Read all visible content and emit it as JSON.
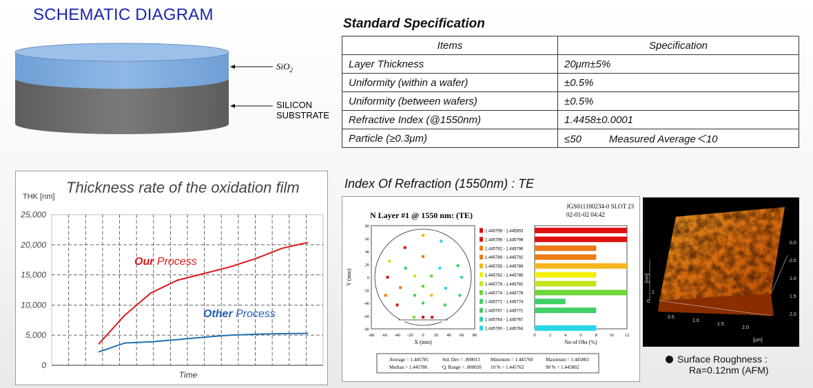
{
  "schematic": {
    "title": "SCHEMATIC DIAGRAM",
    "layer_label": "SiO",
    "layer_label_sub": "2",
    "substrate_label_1": "SILICON",
    "substrate_label_2": "SUBSTRATE",
    "colors": {
      "oxide": "#7aa7dc",
      "substrate": "#6e6e6e"
    }
  },
  "spec": {
    "title": "Standard Specification",
    "headers": [
      "Items",
      "Specification"
    ],
    "rows": [
      [
        "Layer Thickness",
        "20μm±5%"
      ],
      [
        "Uniformity (within a wafer)",
        "±0.5%"
      ],
      [
        "Uniformity (between wafers)",
        "±0.5%"
      ],
      [
        "Refractive Index (@1550nm)",
        "1.4458±0.0001"
      ],
      [
        "Particle (≥0.3μm)",
        "≤50"
      ]
    ],
    "particle_note": "Measured Average＜10"
  },
  "chart_data": {
    "type": "line",
    "title": "Thickness rate of the oxidation film",
    "xlabel": "Time",
    "ylabel": "THK [nm]",
    "ylim": [
      0,
      25000
    ],
    "yticks": [
      "25,000",
      "20,000",
      "15,000",
      "10,000",
      "5,000",
      "0"
    ],
    "grid": true,
    "x": [
      1,
      2,
      3,
      4,
      5,
      6,
      7,
      8,
      9
    ],
    "series": [
      {
        "name": "Our Process",
        "name_bold": "Our",
        "name_rest": " Process",
        "color": "#e01515",
        "values": [
          3500,
          8300,
          12000,
          14100,
          15200,
          16300,
          17700,
          19400,
          20400
        ]
      },
      {
        "name": "Other Process",
        "name_bold": "Other",
        "name_rest": " Process",
        "color": "#1f6fb2",
        "values": [
          2200,
          3700,
          3900,
          4250,
          4650,
          5000,
          5150,
          5250,
          5300
        ]
      }
    ]
  },
  "refraction": {
    "heading": "Index Of Refraction (1550nm) : TE",
    "plot_title": "N Layer #1 @ 1550 nm:  (TE)",
    "meta_1": "JGS011100234-0 SLOT 23",
    "meta_2": "02-01-02 04:42",
    "wafer_xlabel": "X (mm)",
    "wafer_ylabel": "Y (mm)",
    "hist_xlabel": "No of Obs (%)",
    "wafer_ticks": [
      "-80",
      "-60",
      "-40",
      "-20",
      "0",
      "20",
      "40",
      "60",
      "80"
    ],
    "hist_ticks": [
      "0",
      "2",
      "4",
      "6",
      "8",
      "10",
      "12"
    ],
    "legend": [
      {
        "range": "1.445799 - 1.445803",
        "color": "#e01010",
        "pct": 12
      },
      {
        "range": "1.445796 - 1.445799",
        "color": "#e01010",
        "pct": 12
      },
      {
        "range": "1.445792 - 1.445796",
        "color": "#ee7b16",
        "pct": 8
      },
      {
        "range": "1.445789 - 1.445792",
        "color": "#ee7b16",
        "pct": 8
      },
      {
        "range": "1.445785 - 1.445789",
        "color": "#f7b51f",
        "pct": 12
      },
      {
        "range": "1.445782 - 1.445785",
        "color": "#f4f000",
        "pct": 8
      },
      {
        "range": "1.445778 - 1.445782",
        "color": "#c2e51a",
        "pct": 8
      },
      {
        "range": "1.445774 - 1.445778",
        "color": "#6ed53a",
        "pct": 12
      },
      {
        "range": "1.445771 - 1.445774",
        "color": "#3fcf67",
        "pct": 4
      },
      {
        "range": "1.445767 - 1.445771",
        "color": "#3fcf67",
        "pct": 8
      },
      {
        "range": "1.445764 - 1.445767",
        "color": "#2fd1b3",
        "pct": 0
      },
      {
        "range": "1.445760 - 1.445764",
        "color": "#29d7e6",
        "pct": 8
      }
    ],
    "points": [
      {
        "x": 0,
        "y": 65,
        "c": 4
      },
      {
        "x": -28,
        "y": 46,
        "c": 1
      },
      {
        "x": 28,
        "y": 56,
        "c": 11
      },
      {
        "x": -52,
        "y": 25,
        "c": 6
      },
      {
        "x": 0,
        "y": 32,
        "c": 2
      },
      {
        "x": 54,
        "y": 18,
        "c": 9
      },
      {
        "x": -27,
        "y": 14,
        "c": 8
      },
      {
        "x": 26,
        "y": 14,
        "c": 11
      },
      {
        "x": -55,
        "y": 0,
        "c": 0
      },
      {
        "x": -13,
        "y": 2,
        "c": 6
      },
      {
        "x": 13,
        "y": 2,
        "c": 7
      },
      {
        "x": 60,
        "y": 0,
        "c": 10
      },
      {
        "x": -35,
        "y": -16,
        "c": 3
      },
      {
        "x": 0,
        "y": -14,
        "c": 7
      },
      {
        "x": 35,
        "y": -17,
        "c": 11
      },
      {
        "x": -58,
        "y": -28,
        "c": 3
      },
      {
        "x": -13,
        "y": -28,
        "c": 8
      },
      {
        "x": 13,
        "y": -28,
        "c": 4
      },
      {
        "x": 57,
        "y": -28,
        "c": 9
      },
      {
        "x": -40,
        "y": -43,
        "c": 0
      },
      {
        "x": 0,
        "y": -40,
        "c": 8
      },
      {
        "x": 34,
        "y": -43,
        "c": 9
      },
      {
        "x": -14,
        "y": -62,
        "c": 7
      },
      {
        "x": 0,
        "y": -62,
        "c": 0
      },
      {
        "x": 14,
        "y": -62,
        "c": 1
      }
    ],
    "stats": {
      "average": "Average = 1.445785",
      "stddev": "Std. Dev = .000013",
      "minimum": "Minimum = 1.445760",
      "maximum": "Maximum = 1.445803",
      "median": "Median = 1.445786",
      "qrange": "Q. Range = .000020",
      "p10": "10 % = 1.445762",
      "p90": "90 % = 1.445802"
    }
  },
  "afm": {
    "ticks_right": [
      "0.0",
      "0.5",
      "1.0",
      "1.5",
      "2.0"
    ],
    "ticks_bottom": [
      "0.5",
      "1.0",
      "1.5",
      "2.0"
    ],
    "unit_left": "[nm]",
    "zero_label": "0",
    "axis_label": "1",
    "unit": "[μm]",
    "caption_1": "Surface Roughness :",
    "caption_2": "Ra=0.12nm   (AFM)"
  }
}
